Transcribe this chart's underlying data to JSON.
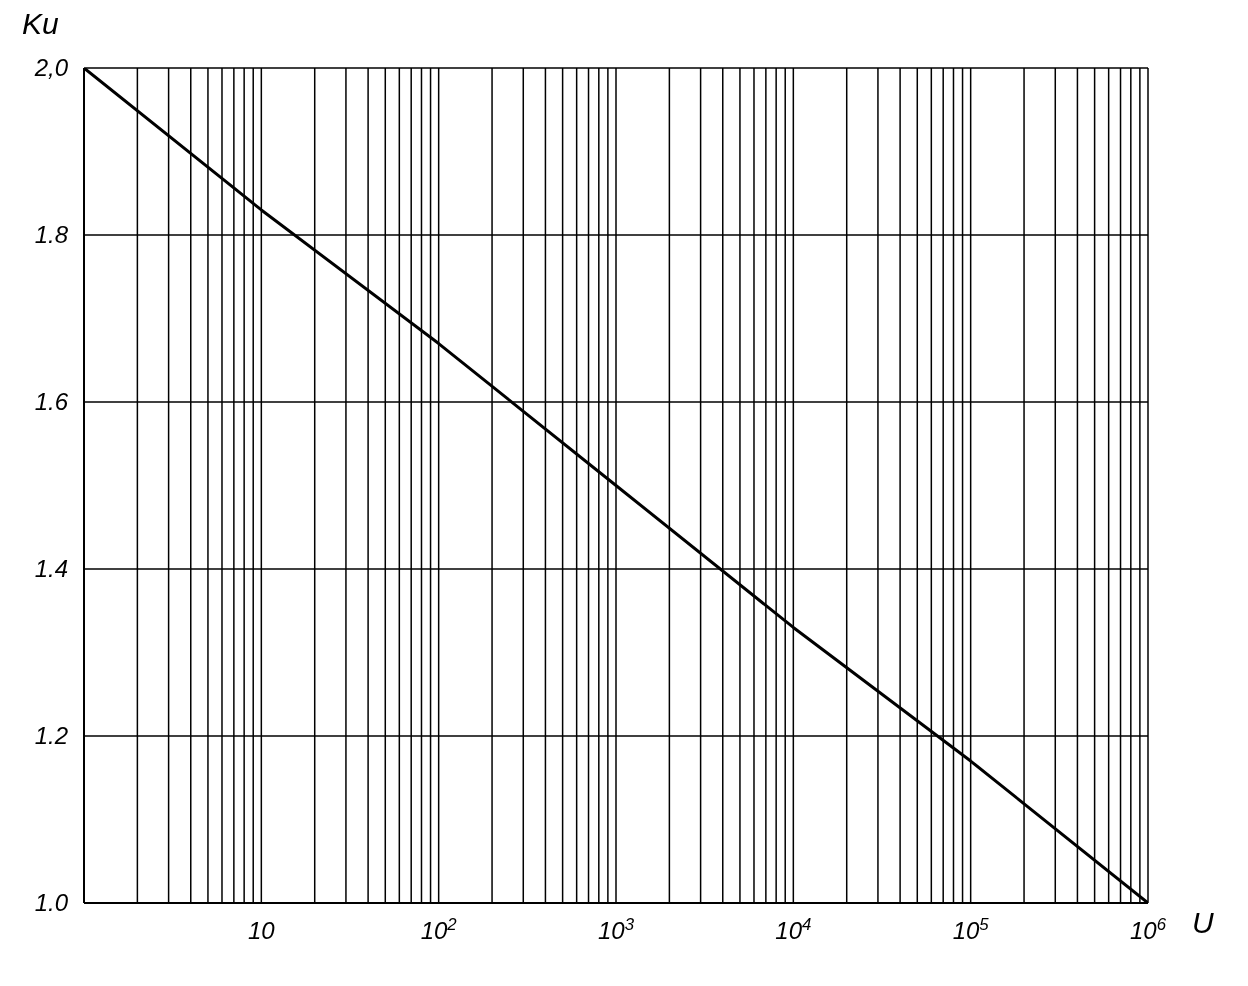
{
  "chart_data": {
    "type": "line",
    "xlabel": "U",
    "ylabel": "Ku",
    "log": "x",
    "grid": true,
    "marker": "none",
    "line_style": "solid",
    "x": [
      1,
      10,
      100,
      1000,
      10000,
      100000,
      1000000
    ],
    "series": [
      {
        "color": "#000000",
        "values": [
          2.0,
          1.83,
          1.67,
          1.5,
          1.33,
          1.17,
          1.0
        ]
      }
    ],
    "xlim": [
      1,
      1000000
    ],
    "xticks": [
      {
        "value": 2,
        "label": null
      },
      {
        "value": 3,
        "label": null
      },
      {
        "value": 4,
        "label": null
      },
      {
        "value": 5,
        "label": null
      },
      {
        "value": 6,
        "label": null
      },
      {
        "value": 7,
        "label": null
      },
      {
        "value": 8,
        "label": null
      },
      {
        "value": 9,
        "label": null
      },
      10,
      {
        "value": 20,
        "label": null
      },
      {
        "value": 30,
        "label": null
      },
      {
        "value": 40,
        "label": null
      },
      {
        "value": 50,
        "label": null
      },
      {
        "value": 60,
        "label": null
      },
      {
        "value": 70,
        "label": null
      },
      {
        "value": 80,
        "label": null
      },
      {
        "value": 90,
        "label": null
      },
      {
        "value": 100,
        "label": "10$^{2}$"
      },
      {
        "value": 200,
        "label": null
      },
      {
        "value": 300,
        "label": null
      },
      {
        "value": 400,
        "label": null
      },
      {
        "value": 500,
        "label": null
      },
      {
        "value": 600,
        "label": null
      },
      {
        "value": 700,
        "label": null
      },
      {
        "value": 800,
        "label": null
      },
      {
        "value": 900,
        "label": null
      },
      {
        "value": 1000,
        "label": "10$^{3}$"
      },
      {
        "value": 2000,
        "label": null
      },
      {
        "value": 3000,
        "label": null
      },
      {
        "value": 4000,
        "label": null
      },
      {
        "value": 5000,
        "label": null
      },
      {
        "value": 6000,
        "label": null
      },
      {
        "value": 7000,
        "label": null
      },
      {
        "value": 8000,
        "label": null
      },
      {
        "value": 9000,
        "label": null
      },
      {
        "value": 10000,
        "label": "10$^{4}$"
      },
      {
        "value": 20000,
        "label": null
      },
      {
        "value": 30000,
        "label": null
      },
      {
        "value": 40000,
        "label": null
      },
      {
        "value": 50000,
        "label": null
      },
      {
        "value": 60000,
        "label": null
      },
      {
        "value": 70000,
        "label": null
      },
      {
        "value": 80000,
        "label": null
      },
      {
        "value": 90000,
        "label": null
      },
      {
        "value": 100000,
        "label": "10$^{5}$"
      },
      {
        "value": 200000,
        "label": null
      },
      {
        "value": 300000,
        "label": null
      },
      {
        "value": 400000,
        "label": null
      },
      {
        "value": 500000,
        "label": null
      },
      {
        "value": 600000,
        "label": null
      },
      {
        "value": 700000,
        "label": null
      },
      {
        "value": 800000,
        "label": null
      },
      {
        "value": 900000,
        "label": null
      },
      {
        "value": 1000000,
        "label": "10$^{6}$"
      }
    ],
    "ylim": [
      1.0,
      2.0
    ],
    "yticks": [
      {
        "value": 1.0,
        "label": "1.0"
      },
      1.2,
      1.4,
      1.6,
      1.8,
      {
        "value": 2.0,
        "label": "2,0"
      }
    ]
  }
}
